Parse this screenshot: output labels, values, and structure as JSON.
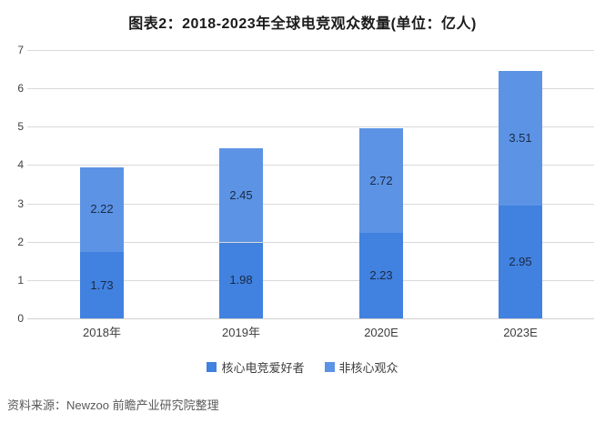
{
  "title": "图表2：2018-2023年全球电竞观众数量(单位：亿人)",
  "source": "资料来源：Newzoo 前瞻产业研究院整理",
  "colors": {
    "core_series": "#4181df",
    "noncore_series": "#5c93e5",
    "gridline": "#d9d9d9",
    "title_text": "#1a1a1a",
    "source_text": "#595959"
  },
  "chart_data": {
    "type": "bar",
    "stacked": true,
    "title": "图表2：2018-2023年全球电竞观众数量(单位：亿人)",
    "categories": [
      "2018年",
      "2019年",
      "2020E",
      "2023E"
    ],
    "series": [
      {
        "name": "核心电竞爱好者",
        "color": "#4181df",
        "values": [
          1.73,
          1.98,
          2.23,
          2.95
        ]
      },
      {
        "name": "非核心观众",
        "color": "#5c93e5",
        "values": [
          2.22,
          2.45,
          2.72,
          3.51
        ]
      }
    ],
    "totals": [
      3.95,
      4.43,
      4.95,
      6.46
    ],
    "xlabel": "",
    "ylabel": "",
    "ylim": [
      0,
      7
    ],
    "ytick_step": 1,
    "grid": true,
    "legend_position": "bottom",
    "value_labels": "inside-center",
    "value_format": "2-decimals"
  }
}
